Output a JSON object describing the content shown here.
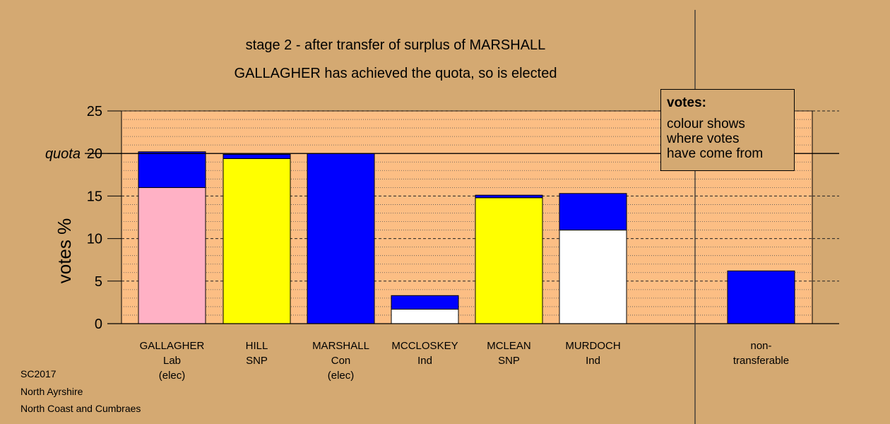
{
  "title_lines": [
    "stage 2 - after transfer of surplus of MARSHALL",
    "GALLAGHER has achieved the quota, so is elected"
  ],
  "footer_lines": [
    "SC2017",
    "North Ayrshire",
    "North Coast and Cumbraes"
  ],
  "legend": {
    "title": "votes:",
    "lines": [
      "colour shows",
      "where votes",
      "have come from"
    ]
  },
  "colors": {
    "background": "#d4a972",
    "plot_area": "#fcbe84",
    "Lab": "#ffb1c5",
    "SNP": "#ffff00",
    "Con": "#0000ff",
    "Ind": "#ffffff"
  },
  "chart_data": {
    "type": "bar",
    "stacked": true,
    "ylabel": "votes %",
    "ylim": [
      0,
      25
    ],
    "yticks": [
      0,
      5,
      10,
      15,
      20,
      25
    ],
    "quota": 20,
    "quota_label": "quota",
    "grid": true,
    "legend_position": "top-right",
    "categories": [
      {
        "lines": [
          "GALLAGHER",
          "Lab",
          "(elec)"
        ],
        "segments": [
          {
            "from": "Lab",
            "value": 16.0
          },
          {
            "from": "Con",
            "value": 4.2
          }
        ]
      },
      {
        "lines": [
          "HILL",
          "SNP"
        ],
        "segments": [
          {
            "from": "SNP",
            "value": 19.4
          },
          {
            "from": "Con",
            "value": 0.5
          }
        ]
      },
      {
        "lines": [
          "MARSHALL",
          "Con",
          "(elec)"
        ],
        "segments": [
          {
            "from": "Con",
            "value": 20.0
          }
        ]
      },
      {
        "lines": [
          "MCCLOSKEY",
          "Ind"
        ],
        "segments": [
          {
            "from": "Ind",
            "value": 1.7
          },
          {
            "from": "Con",
            "value": 1.6
          }
        ]
      },
      {
        "lines": [
          "MCLEAN",
          "SNP"
        ],
        "segments": [
          {
            "from": "SNP",
            "value": 14.8
          },
          {
            "from": "Con",
            "value": 0.3
          }
        ]
      },
      {
        "lines": [
          "MURDOCH",
          "Ind"
        ],
        "segments": [
          {
            "from": "Ind",
            "value": 11.0
          },
          {
            "from": "Con",
            "value": 4.3
          }
        ]
      },
      {
        "lines": [
          "non-",
          "transferable"
        ],
        "segments": [
          {
            "from": "Con",
            "value": 6.2
          }
        ]
      }
    ]
  }
}
